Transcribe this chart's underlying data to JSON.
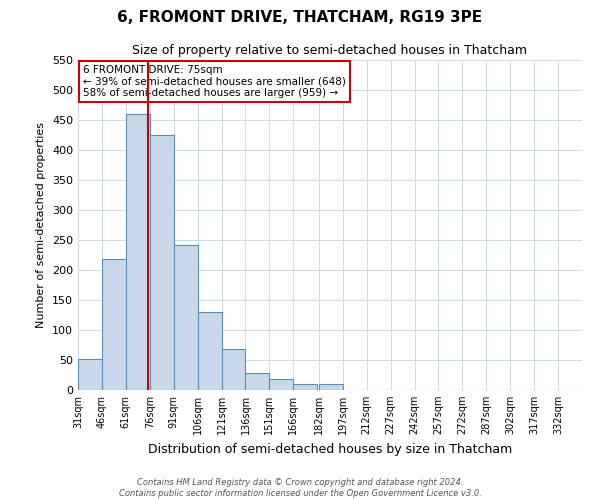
{
  "title": "6, FROMONT DRIVE, THATCHAM, RG19 3PE",
  "subtitle": "Size of property relative to semi-detached houses in Thatcham",
  "xlabel": "Distribution of semi-detached houses by size in Thatcham",
  "ylabel": "Number of semi-detached properties",
  "bin_labels": [
    "31sqm",
    "46sqm",
    "61sqm",
    "76sqm",
    "91sqm",
    "106sqm",
    "121sqm",
    "136sqm",
    "151sqm",
    "166sqm",
    "182sqm",
    "197sqm",
    "212sqm",
    "227sqm",
    "242sqm",
    "257sqm",
    "272sqm",
    "287sqm",
    "302sqm",
    "317sqm",
    "332sqm"
  ],
  "bin_edges": [
    31,
    46,
    61,
    76,
    91,
    106,
    121,
    136,
    151,
    166,
    182,
    197,
    212,
    227,
    242,
    257,
    272,
    287,
    302,
    317,
    332,
    347
  ],
  "bar_heights": [
    52,
    218,
    460,
    425,
    242,
    130,
    68,
    29,
    19,
    10,
    10,
    0,
    0,
    0,
    0,
    0,
    0,
    0,
    0,
    0,
    0
  ],
  "bar_color": "#c8d8e8",
  "bar_edge_color": "#5b8db8",
  "property_value": 75,
  "red_line_color": "#cc0000",
  "annotation_title": "6 FROMONT DRIVE: 75sqm",
  "annotation_line1": "← 39% of semi-detached houses are smaller (648)",
  "annotation_line2": "58% of semi-detached houses are larger (959) →",
  "annotation_box_color": "#ffffff",
  "annotation_box_edge": "#cc0000",
  "ylim": [
    0,
    550
  ],
  "yticks": [
    0,
    50,
    100,
    150,
    200,
    250,
    300,
    350,
    400,
    450,
    500,
    550
  ],
  "footer_line1": "Contains HM Land Registry data © Crown copyright and database right 2024.",
  "footer_line2": "Contains public sector information licensed under the Open Government Licence v3.0.",
  "background_color": "#ffffff",
  "grid_color": "#ccd9e8"
}
